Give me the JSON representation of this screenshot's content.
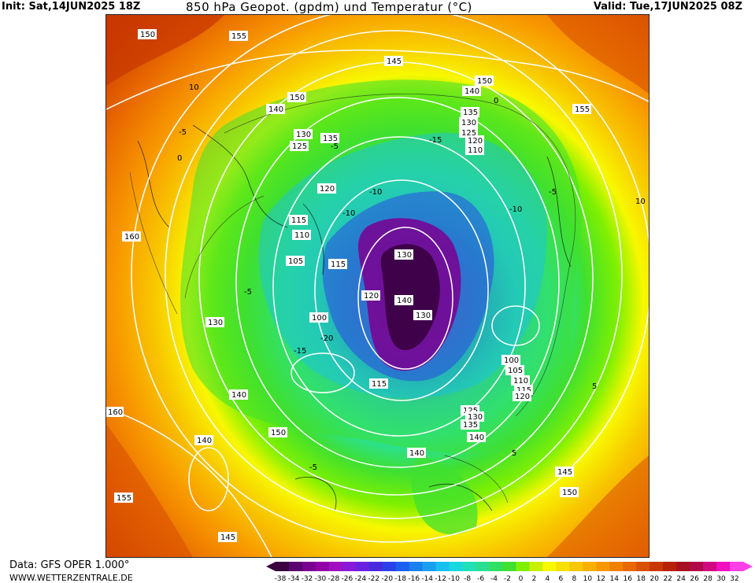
{
  "header": {
    "init": "Init: Sat,14JUN2025 18Z",
    "title": "850 hPa Geopot. (gpdm) und Temperatur (°C)",
    "valid": "Valid: Tue,17JUN2025 08Z"
  },
  "footer": {
    "source": "Data: GFS OPER 1.000°",
    "site": "WWW.WETTERZENTRALE.DE"
  },
  "legend": {
    "ticks": [
      "-38",
      "-34",
      "-32",
      "-30",
      "-28",
      "-26",
      "-24",
      "-22",
      "-20",
      "-18",
      "-16",
      "-14",
      "-12",
      "-10",
      "-8",
      "-6",
      "-4",
      "-2",
      "0",
      "2",
      "4",
      "6",
      "8",
      "10",
      "12",
      "14",
      "16",
      "18",
      "20",
      "22",
      "24",
      "26",
      "28",
      "30",
      "32"
    ],
    "colors": [
      "#3a0040",
      "#5a0070",
      "#7a0090",
      "#9400a8",
      "#a010c0",
      "#8a18d8",
      "#6a20e0",
      "#4a28e0",
      "#2a40e8",
      "#1c60f0",
      "#1a80f0",
      "#18a0f0",
      "#18c0f0",
      "#18d8e0",
      "#20e0b8",
      "#28e090",
      "#30e060",
      "#40e030",
      "#80f000",
      "#c8f000",
      "#f8f800",
      "#f8e000",
      "#f8c800",
      "#f8b000",
      "#f89800",
      "#f08000",
      "#e86800",
      "#d85000",
      "#c83800",
      "#b82008",
      "#a81020",
      "#b00848",
      "#d00880",
      "#f010c0",
      "#ff40e8"
    ]
  },
  "map": {
    "geopotential_labels": [
      "150",
      "155",
      "160",
      "155",
      "145",
      "150",
      "155",
      "150",
      "145",
      "140",
      "135",
      "130",
      "125",
      "120",
      "110",
      "140",
      "135",
      "130",
      "125",
      "120",
      "115",
      "110",
      "105",
      "115",
      "130",
      "120",
      "135",
      "140",
      "130",
      "125",
      "100",
      "115",
      "120",
      "100",
      "105",
      "110",
      "115",
      "120",
      "125",
      "130",
      "135",
      "140",
      "140",
      "145",
      "150",
      "155",
      "140",
      "130",
      "150",
      "160",
      "140",
      "145",
      "150",
      "155",
      "160"
    ],
    "temperature_labels": [
      "10",
      "-5",
      "0",
      "-5",
      "-10",
      "-15",
      "-20",
      "-15",
      "-10",
      "-5",
      "0",
      "5",
      "10",
      "-5",
      "5",
      "-5",
      "-10"
    ]
  }
}
